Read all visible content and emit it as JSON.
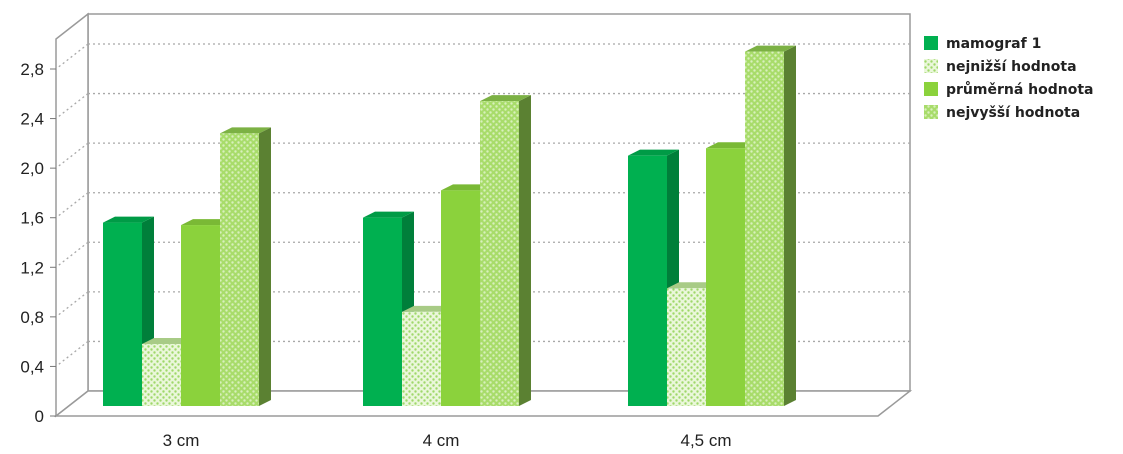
{
  "chart_data": {
    "type": "bar",
    "title": "",
    "xlabel": "",
    "ylabel": "",
    "categories": [
      "3 cm",
      "4 cm",
      "4,5 cm"
    ],
    "ylim": [
      0,
      3.2
    ],
    "yticks": [
      0,
      0.4,
      0.8,
      1.2,
      1.6,
      2.0,
      2.4,
      2.8
    ],
    "ytick_labels": [
      "0",
      "0,4",
      "0,8",
      "1,2",
      "1,6",
      "2,0",
      "2,4",
      "2,8"
    ],
    "grid": true,
    "legend_position": "right",
    "style_3d": true,
    "series": [
      {
        "name": "mamograf 1",
        "values": [
          1.48,
          1.52,
          2.02
        ],
        "color": "#00b050",
        "pattern": "solid"
      },
      {
        "name": "nejnižší hodnota",
        "values": [
          0.5,
          0.76,
          0.95
        ],
        "color": "#c6ef9e",
        "pattern": "dots"
      },
      {
        "name": "průměrná hodnota",
        "values": [
          1.46,
          1.74,
          2.08
        ],
        "color": "#8bd23c",
        "pattern": "solid"
      },
      {
        "name": "nejvyšší hodnota",
        "values": [
          2.2,
          2.46,
          2.86
        ],
        "color": "#92d050",
        "pattern": "dots"
      }
    ]
  }
}
